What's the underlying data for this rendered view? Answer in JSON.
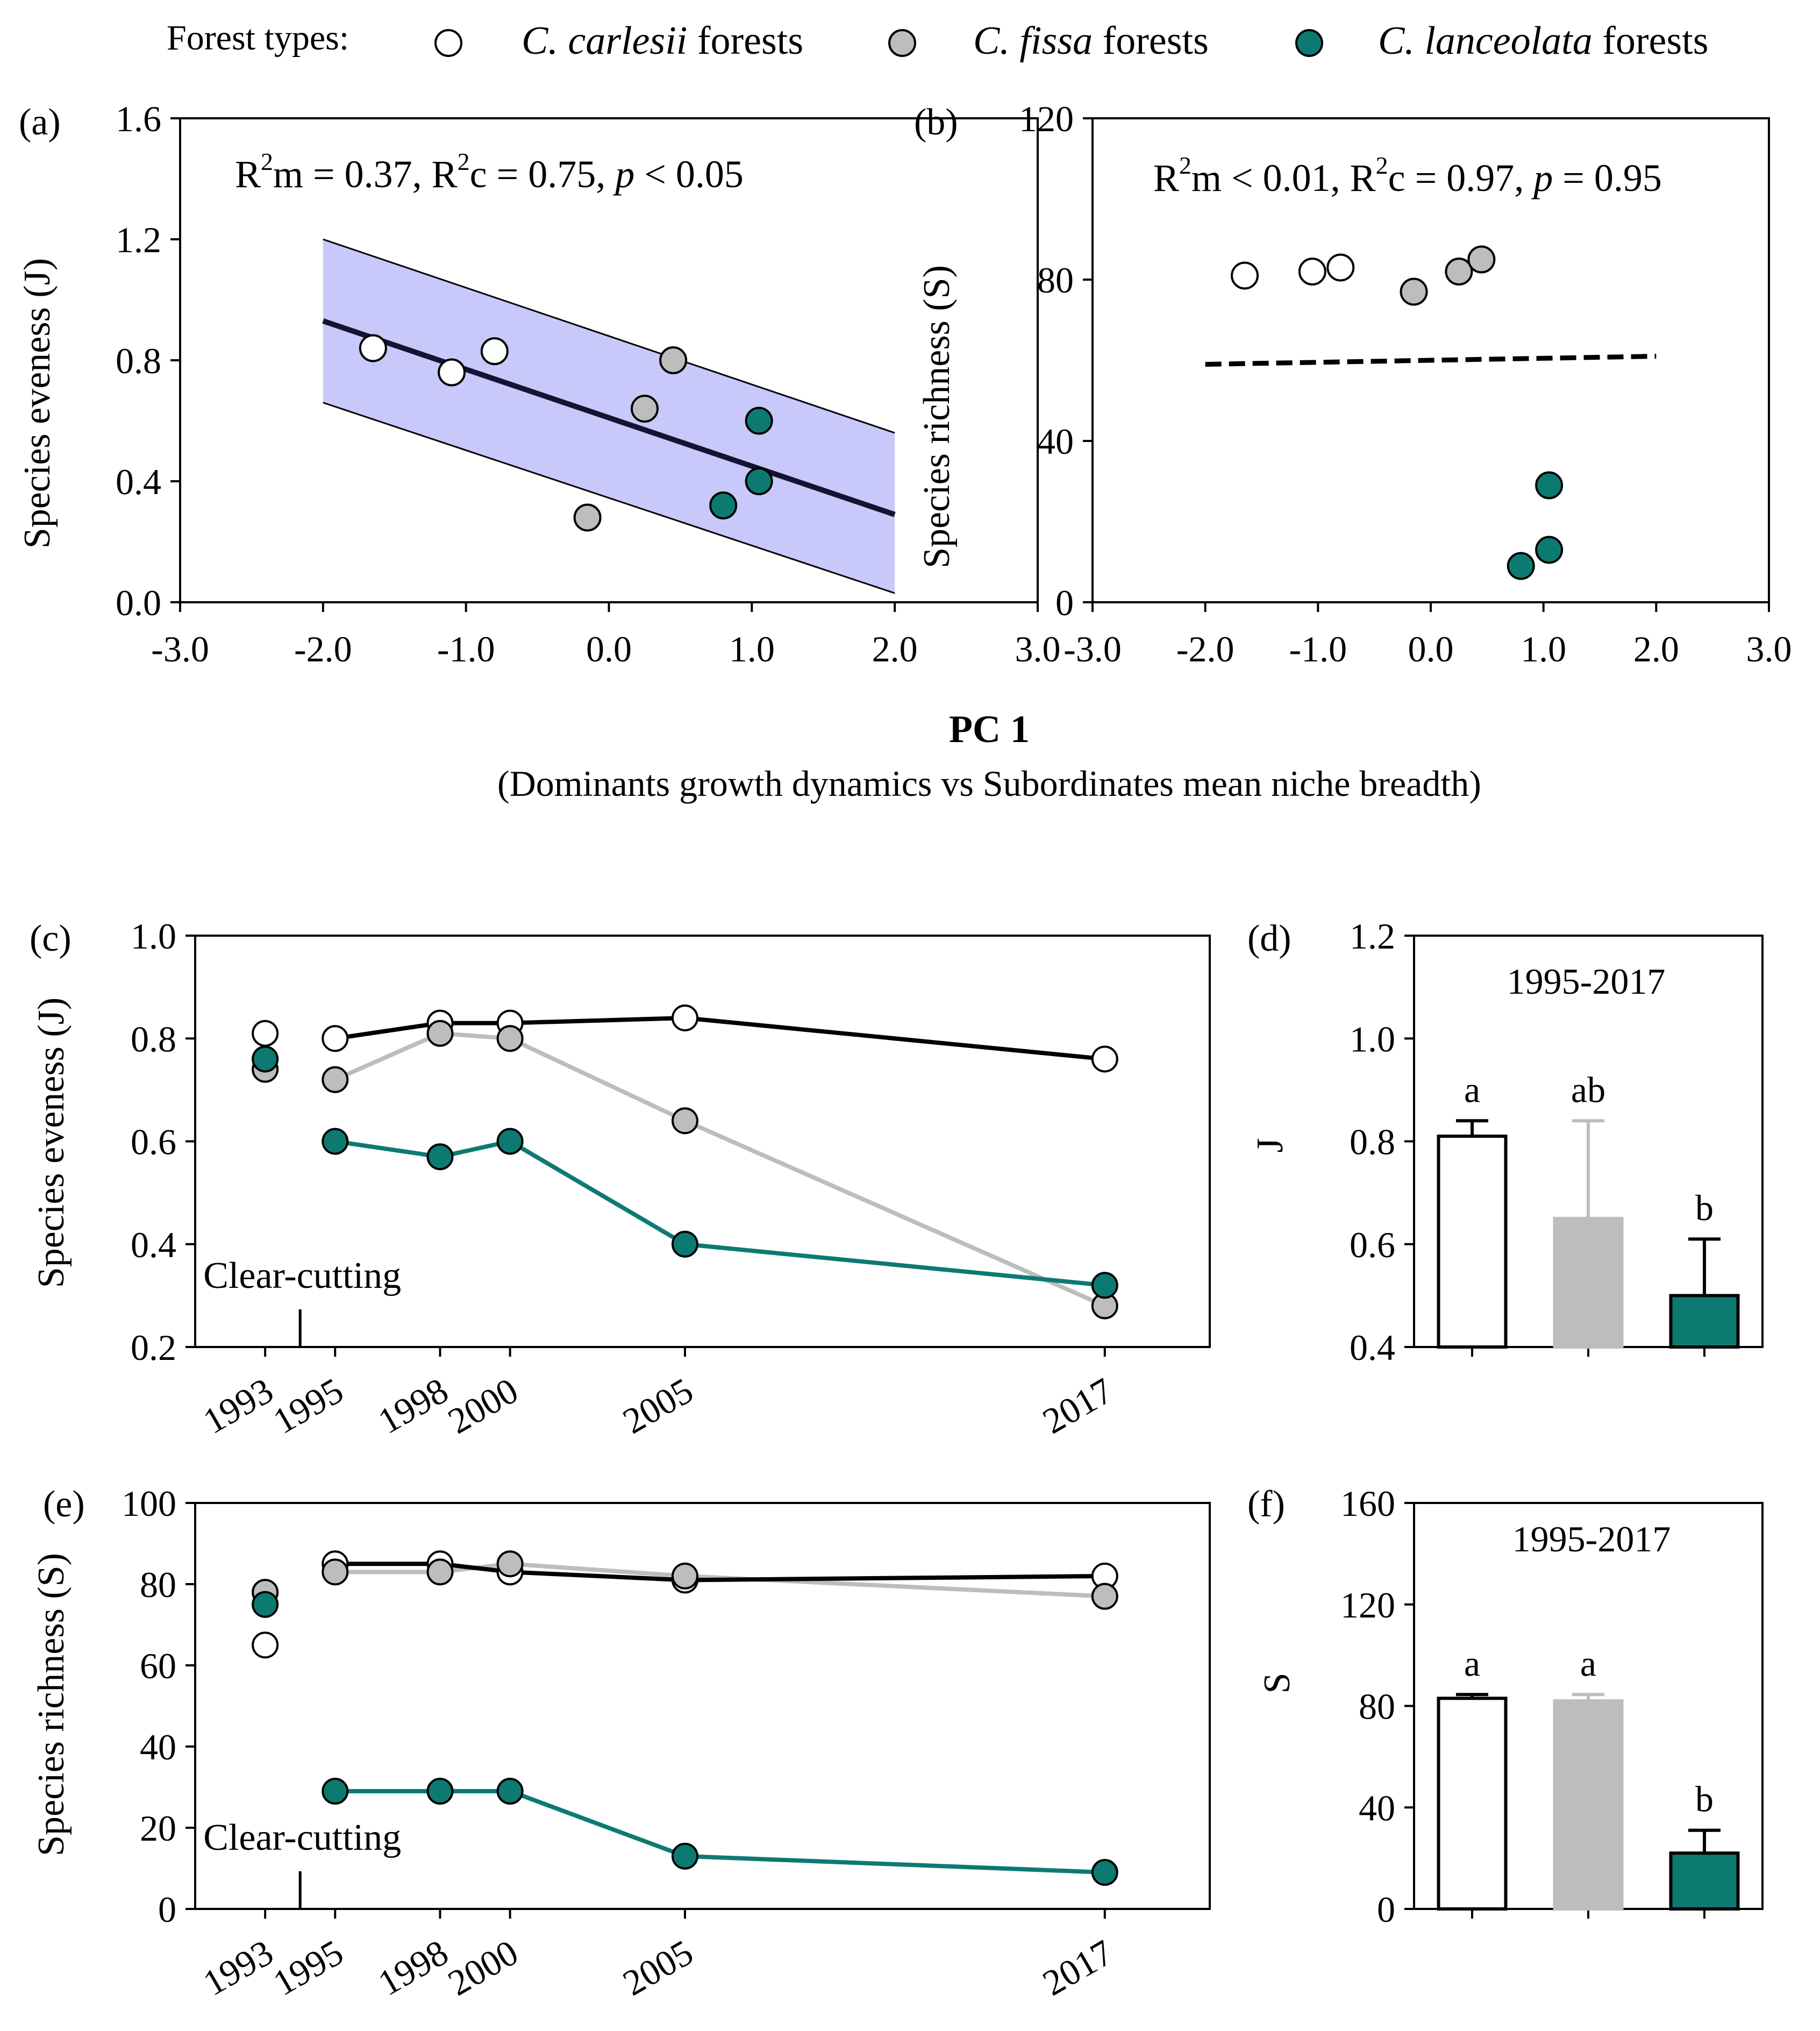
{
  "figure": {
    "legend": {
      "title": "Forest types:",
      "entries": [
        {
          "species": "C. carlesii",
          "suffix": " forests",
          "fill": "#ffffff"
        },
        {
          "species": "C. fissa",
          "suffix": " forests",
          "fill": "#bdbdbd"
        },
        {
          "species": "C. lanceolata",
          "suffix": " forests",
          "fill": "#0d7a72"
        }
      ]
    },
    "shared_xlabel": {
      "main": "PC 1",
      "sub": "(Dominants growth dynamics vs Subordinates mean niche breadth)"
    },
    "colors": {
      "carlesii": "#ffffff",
      "fissa": "#bdbdbd",
      "lanceolata": "#0d7a72",
      "fissa_line": "#bdbdbd",
      "ci_band": "#c8c8fa",
      "fit_line": "#141432"
    }
  },
  "chart_data": [
    {
      "id": "a",
      "panel_label": "(a)",
      "type": "scatter",
      "ylabel": "Species eveness (J)",
      "xlim": [
        -3.0,
        3.0
      ],
      "ylim": [
        0.0,
        1.6
      ],
      "xticks": [
        "-3.0",
        "-2.0",
        "-1.0",
        "0.0",
        "1.0",
        "2.0",
        "3.0"
      ],
      "yticks": [
        "0.0",
        "0.4",
        "0.8",
        "1.2",
        "1.6"
      ],
      "annotation": {
        "l1": "R",
        "s1": "2",
        "l2": "m = 0.37, R",
        "s2": "2",
        "l3": "c = 0.75, ",
        "p": "p",
        "l4": " < 0.05"
      },
      "fit": {
        "x": [
          -2.0,
          2.0
        ],
        "y": [
          0.93,
          0.29
        ]
      },
      "ci": {
        "x": [
          -2.0,
          2.0
        ],
        "upper": [
          1.2,
          0.56
        ],
        "lower": [
          0.66,
          0.03
        ]
      },
      "series": [
        {
          "name": "C. carlesii forests",
          "x": [
            -1.65,
            -1.1,
            -0.8
          ],
          "y": [
            0.84,
            0.76,
            0.83
          ]
        },
        {
          "name": "C. fissa forests",
          "x": [
            -0.15,
            0.25,
            0.45
          ],
          "y": [
            0.28,
            0.64,
            0.8
          ]
        },
        {
          "name": "C. lanceolata forests",
          "x": [
            0.8,
            1.05,
            1.05
          ],
          "y": [
            0.32,
            0.6,
            0.4
          ]
        }
      ]
    },
    {
      "id": "b",
      "panel_label": "(b)",
      "type": "scatter",
      "ylabel": "Species richness (S)",
      "xlim": [
        -3.0,
        3.0
      ],
      "ylim": [
        0,
        120
      ],
      "xticks": [
        "-3.0",
        "-2.0",
        "-1.0",
        "0.0",
        "1.0",
        "2.0",
        "3.0"
      ],
      "yticks": [
        "0",
        "40",
        "80",
        "120"
      ],
      "annotation": {
        "l1": "R",
        "s1": "2",
        "l2": "m < 0.01, R",
        "s2": "2",
        "l3": "c = 0.97, ",
        "p": "p",
        "l4": " = 0.95"
      },
      "fit": {
        "x": [
          -2.0,
          2.0
        ],
        "y": [
          59,
          61
        ]
      },
      "series": [
        {
          "name": "C. carlesii forests",
          "x": [
            -1.65,
            -1.05,
            -0.8
          ],
          "y": [
            81,
            82,
            83
          ]
        },
        {
          "name": "C. fissa forests",
          "x": [
            -0.15,
            0.25,
            0.45
          ],
          "y": [
            77,
            82,
            85
          ]
        },
        {
          "name": "C. lanceolata forests",
          "x": [
            0.8,
            1.05,
            1.05
          ],
          "y": [
            9,
            13,
            29
          ]
        }
      ]
    },
    {
      "id": "c",
      "panel_label": "(c)",
      "type": "line",
      "ylabel": "Species eveness (J)",
      "xlim": [
        1991,
        2020
      ],
      "ylim": [
        0.2,
        1.0
      ],
      "yticks": [
        "0.2",
        "0.4",
        "0.6",
        "0.8",
        "1.0"
      ],
      "x": [
        1993,
        1995,
        1998,
        2000,
        2005,
        2017
      ],
      "xtick_labels": [
        "1993",
        "1995",
        "1998",
        "2000",
        "2005",
        "2017"
      ],
      "clear_cut_year": 1994,
      "clear_cut_label": "Clear-cutting",
      "series": [
        {
          "name": "C. carlesii forests",
          "values": [
            0.81,
            0.8,
            0.83,
            0.83,
            0.84,
            0.76
          ]
        },
        {
          "name": "C. fissa forests",
          "values": [
            0.74,
            0.72,
            0.81,
            0.8,
            0.64,
            0.28
          ]
        },
        {
          "name": "C. lanceolata forests",
          "values": [
            0.76,
            0.6,
            0.57,
            0.6,
            0.4,
            0.32
          ]
        }
      ]
    },
    {
      "id": "d",
      "panel_label": "(d)",
      "type": "bar",
      "title": "1995-2017",
      "ylabel": "J",
      "ylim": [
        0.4,
        1.2
      ],
      "yticks": [
        "0.4",
        "0.6",
        "0.8",
        "1.0",
        "1.2"
      ],
      "categories": [
        "C. carlesii forests",
        "C. fissa forests",
        "C. lanceolata forests"
      ],
      "values": [
        0.81,
        0.65,
        0.5
      ],
      "errors": [
        0.03,
        0.19,
        0.11
      ],
      "letters": [
        "a",
        "ab",
        "b"
      ]
    },
    {
      "id": "e",
      "panel_label": "(e)",
      "type": "line",
      "ylabel": "Species richness (S)",
      "xlim": [
        1991,
        2020
      ],
      "ylim": [
        0,
        100
      ],
      "yticks": [
        "0",
        "20",
        "40",
        "60",
        "80",
        "100"
      ],
      "x": [
        1993,
        1995,
        1998,
        2000,
        2005,
        2017
      ],
      "xtick_labels": [
        "1993",
        "1995",
        "1998",
        "2000",
        "2005",
        "2017"
      ],
      "clear_cut_year": 1994,
      "clear_cut_label": "Clear-cutting",
      "series": [
        {
          "name": "C. carlesii forests",
          "values": [
            65,
            85,
            85,
            83,
            81,
            82
          ]
        },
        {
          "name": "C. fissa forests",
          "values": [
            78,
            83,
            83,
            85,
            82,
            77
          ]
        },
        {
          "name": "C. lanceolata forests",
          "values": [
            75,
            29,
            29,
            29,
            13,
            9
          ]
        }
      ]
    },
    {
      "id": "f",
      "panel_label": "(f)",
      "type": "bar",
      "title": "1995-2017",
      "ylabel": "S",
      "ylim": [
        0,
        160
      ],
      "yticks": [
        "0",
        "40",
        "80",
        "120",
        "160"
      ],
      "categories": [
        "C. carlesii forests",
        "C. fissa forests",
        "C. lanceolata forests"
      ],
      "values": [
        83,
        82,
        22
      ],
      "errors": [
        1.5,
        2.5,
        9
      ],
      "letters": [
        "a",
        "a",
        "b"
      ]
    }
  ]
}
